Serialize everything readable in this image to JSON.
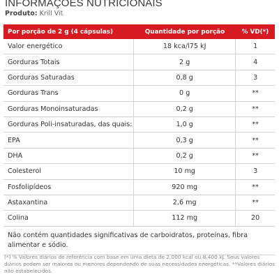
{
  "header": {
    "title": "INFORMAÇÕES NUTRICIONAIS",
    "product_label": "Produto:",
    "product_value": "Krill Vit"
  },
  "table": {
    "columns": [
      "Por porção de 2 g (4 cápsulas)",
      "Quantidade por porção",
      "% VD(*)"
    ],
    "rows": [
      {
        "name": "Valor energético",
        "qty": "18 kca/l75 kJ",
        "vd": "1"
      },
      {
        "name": "Gorduras Totais",
        "qty": "2 g",
        "vd": "4"
      },
      {
        "name": "Gorduras Saturadas",
        "qty": "0,8 g",
        "vd": "3"
      },
      {
        "name": "Gorduras Trans",
        "qty": "0 g",
        "vd": "**"
      },
      {
        "name": "Gorduras Monoinsaturadas",
        "qty": "0,2 g",
        "vd": "**"
      },
      {
        "name": "Gorduras Poli-insaturadas, das quais:",
        "qty": "1,0 g",
        "vd": "**"
      },
      {
        "name": "EPA",
        "qty": "0,3 g",
        "vd": "**"
      },
      {
        "name": "DHA",
        "qty": "0,2 g",
        "vd": "**"
      },
      {
        "name": "Colesterol",
        "qty": "10 mg",
        "vd": "3"
      },
      {
        "name": "Fosfolipídeos",
        "qty": "920 mg",
        "vd": "**"
      },
      {
        "name": "Astaxantina",
        "qty": "2,6 mg",
        "vd": "**"
      },
      {
        "name": "Colina",
        "qty": "112 mg",
        "vd": "20"
      }
    ],
    "footnote_line1": "Não contém quantidades significativas de carboidratos, proteínas, fibra",
    "footnote_line2": "alimentar e sódio."
  },
  "disclaimer": "(*) % Valores diários de referência com base em uma dieta de 2.000 kcal ou 8.400 kJ. Seus valores diários podem ser maiores ou menores dependendo de suas necessidades energéticas. **Valores diários não estabelecidos.",
  "colors": {
    "header_red": "#d71a22",
    "row_border": "#cfcfcf",
    "text": "#333333"
  }
}
